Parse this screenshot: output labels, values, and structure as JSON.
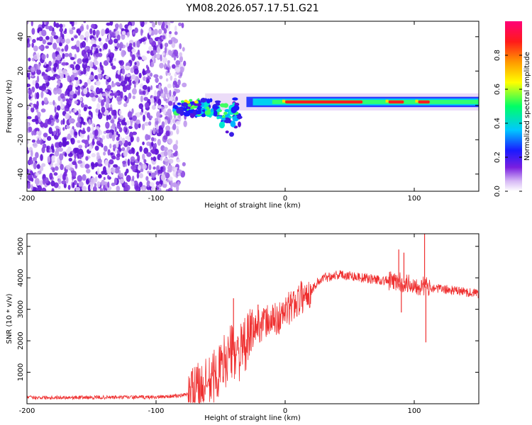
{
  "title": "YM08.2026.057.17.51.G21",
  "chart_data": [
    {
      "type": "heatmap",
      "xlabel": "Height of straight line (km)",
      "ylabel": "Frequency (Hz)",
      "xlim": [
        -200,
        150
      ],
      "ylim": [
        -50,
        49
      ],
      "xticks": [
        -200,
        -100,
        0,
        100
      ],
      "yticks": [
        -40,
        -20,
        0,
        20,
        40
      ],
      "colorbar": {
        "label": "Normalized spectral amplitude",
        "range": [
          0,
          1
        ],
        "ticks": [
          "0.0",
          "0.2",
          "0.4",
          "0.6",
          "0.8"
        ],
        "tick_values": [
          0.0,
          0.2,
          0.4,
          0.6,
          0.8
        ]
      },
      "features": {
        "noise_region_x": [
          -200,
          -75
        ],
        "signal_band_center_hz": 2,
        "signal_band_halfwidth_hz": 3,
        "signal_start_x": -88,
        "turbulent_zone_x": [
          -85,
          -35
        ],
        "peak_segments_x": [
          [
            0,
            60
          ],
          [
            80,
            92
          ],
          [
            103,
            112
          ]
        ]
      }
    },
    {
      "type": "line",
      "xlabel": "Height of straight line (km)",
      "ylabel": "SNR (10 * v/v)",
      "xlim": [
        -200,
        150
      ],
      "ylim": [
        0,
        5400
      ],
      "xticks": [
        -200,
        -100,
        0,
        100
      ],
      "yticks": [
        1000,
        2000,
        3000,
        4000,
        5000
      ],
      "color": "#ef3030",
      "series": [
        {
          "name": "SNR",
          "envelope": [
            {
              "x": -200,
              "y": 200
            },
            {
              "x": -150,
              "y": 200
            },
            {
              "x": -100,
              "y": 210
            },
            {
              "x": -80,
              "y": 260
            },
            {
              "x": -70,
              "y": 350
            },
            {
              "x": -60,
              "y": 600
            },
            {
              "x": -50,
              "y": 1100
            },
            {
              "x": -45,
              "y": 1500
            },
            {
              "x": -40,
              "y": 1700
            },
            {
              "x": -35,
              "y": 1600
            },
            {
              "x": -30,
              "y": 1900
            },
            {
              "x": -25,
              "y": 2300
            },
            {
              "x": -20,
              "y": 2500
            },
            {
              "x": -15,
              "y": 2600
            },
            {
              "x": -10,
              "y": 2650
            },
            {
              "x": -5,
              "y": 2700
            },
            {
              "x": 0,
              "y": 2900
            },
            {
              "x": 5,
              "y": 3100
            },
            {
              "x": 10,
              "y": 3300
            },
            {
              "x": 15,
              "y": 3450
            },
            {
              "x": 20,
              "y": 3600
            },
            {
              "x": 25,
              "y": 3850
            },
            {
              "x": 30,
              "y": 4000
            },
            {
              "x": 40,
              "y": 4100
            },
            {
              "x": 50,
              "y": 4080
            },
            {
              "x": 60,
              "y": 4000
            },
            {
              "x": 70,
              "y": 3950
            },
            {
              "x": 80,
              "y": 3900
            },
            {
              "x": 90,
              "y": 3850
            },
            {
              "x": 100,
              "y": 3780
            },
            {
              "x": 110,
              "y": 3720
            },
            {
              "x": 120,
              "y": 3650
            },
            {
              "x": 130,
              "y": 3600
            },
            {
              "x": 140,
              "y": 3550
            },
            {
              "x": 150,
              "y": 3500
            }
          ],
          "spikes": [
            {
              "x": -40,
              "y": 3350
            },
            {
              "x": -21,
              "y": 3150
            },
            {
              "x": 88,
              "y": 4900
            },
            {
              "x": 92,
              "y": 4800
            },
            {
              "x": 108,
              "y": 5450
            },
            {
              "x": 109,
              "y": 1950
            },
            {
              "x": 90,
              "y": 2900
            }
          ]
        }
      ]
    }
  ]
}
